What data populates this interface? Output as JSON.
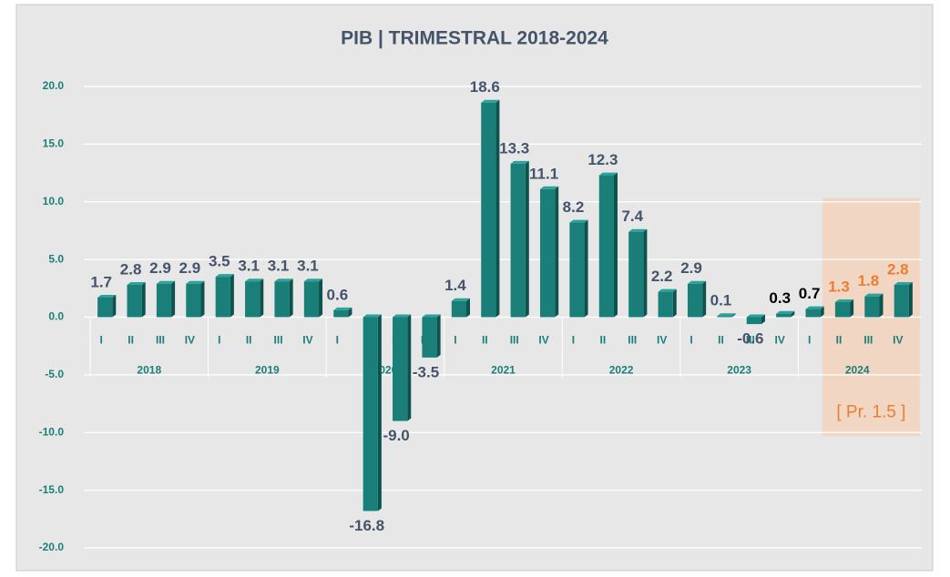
{
  "chart_data": {
    "type": "bar",
    "title": "PIB | TRIMESTRAL 2018-2024",
    "categories": [
      "I",
      "II",
      "III",
      "IV",
      "I",
      "II",
      "III",
      "IV",
      "I",
      "II",
      "III",
      "IV",
      "I",
      "II",
      "III",
      "IV",
      "I",
      "II",
      "III",
      "IV",
      "I",
      "II",
      "III",
      "IV",
      "I",
      "II",
      "III",
      "IV"
    ],
    "year_groups": [
      "2018",
      "2019",
      "2020",
      "2021",
      "2022",
      "2023",
      "2024"
    ],
    "values": [
      1.7,
      2.8,
      2.9,
      2.9,
      3.5,
      3.1,
      3.1,
      3.1,
      0.6,
      -16.8,
      -9.0,
      -3.5,
      1.4,
      18.6,
      13.3,
      11.1,
      8.2,
      12.3,
      7.4,
      2.2,
      2.9,
      0.1,
      -0.6,
      0.3,
      0.7,
      1.3,
      1.8,
      2.8
    ],
    "value_labels": [
      "1.7",
      "2.8",
      "2.9",
      "2.9",
      "3.5",
      "3.1",
      "3.1",
      "3.1",
      "0.6",
      "-16.8",
      "-9.0",
      "-3.5",
      "1.4",
      "18.6",
      "13.3",
      "11.1",
      "8.2",
      "12.3",
      "7.4",
      "2.2",
      "2.9",
      "0.1",
      "-0.6",
      "0.3",
      "0.7",
      "1.3",
      "1.8",
      "2.8"
    ],
    "value_label_colors": [
      "#44546a",
      "#44546a",
      "#44546a",
      "#44546a",
      "#44546a",
      "#44546a",
      "#44546a",
      "#44546a",
      "#44546a",
      "#44546a",
      "#44546a",
      "#44546a",
      "#44546a",
      "#44546a",
      "#44546a",
      "#44546a",
      "#44546a",
      "#44546a",
      "#44546a",
      "#44546a",
      "#44546a",
      "#44546a",
      "#44546a",
      "#000000",
      "#000000",
      "#ed7d31",
      "#ed7d31",
      "#ed7d31"
    ],
    "color": "#1a7f78",
    "highlight": {
      "from": 25,
      "to": 27,
      "color": "#f8cbad"
    },
    "annotation": "[ Pr. 1.5 ]",
    "ylim": [
      -20,
      20
    ],
    "yticks": [
      {
        "value": -20,
        "label": "-20.0"
      },
      {
        "value": -15,
        "label": "-15.0"
      },
      {
        "value": -10,
        "label": "-10.0"
      },
      {
        "value": -5,
        "label": "-5.0"
      },
      {
        "value": 0,
        "label": "0.0"
      },
      {
        "value": 5,
        "label": "5.0"
      },
      {
        "value": 10,
        "label": "10.0"
      },
      {
        "value": 15,
        "label": "15.0"
      },
      {
        "value": 20,
        "label": "20.0"
      }
    ],
    "grid": true
  }
}
